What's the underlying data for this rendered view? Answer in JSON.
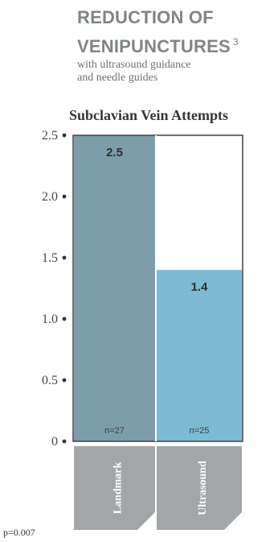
{
  "headline": {
    "line1": "REDUCTION OF",
    "line2": "VENIPUNCTURES",
    "superscript": "3"
  },
  "subhead": {
    "line1": "with ultrasound guidance",
    "line2": "and needle guides"
  },
  "chart_data": {
    "type": "bar",
    "title": "Subclavian Vein Attempts",
    "categories": [
      "Landmark",
      "Ultrasound"
    ],
    "values": [
      2.5,
      1.4
    ],
    "value_labels": [
      "2.5",
      "1.4"
    ],
    "n_labels": [
      "n=27",
      "n=25"
    ],
    "ylim": [
      0,
      2.5
    ],
    "yticks": [
      0,
      0.5,
      1.0,
      1.5,
      2.0,
      2.5
    ],
    "ytick_labels": [
      "0",
      "0.5",
      "1.0",
      "1.5",
      "2.0",
      "2.5"
    ],
    "colors": [
      "#7e9daa",
      "#7dbad3"
    ],
    "frame_color": "#3f4144",
    "tab_color": "#a3a6a8",
    "grid": false,
    "legend": "none"
  },
  "footnote": {
    "p_value": "p=0.007"
  }
}
